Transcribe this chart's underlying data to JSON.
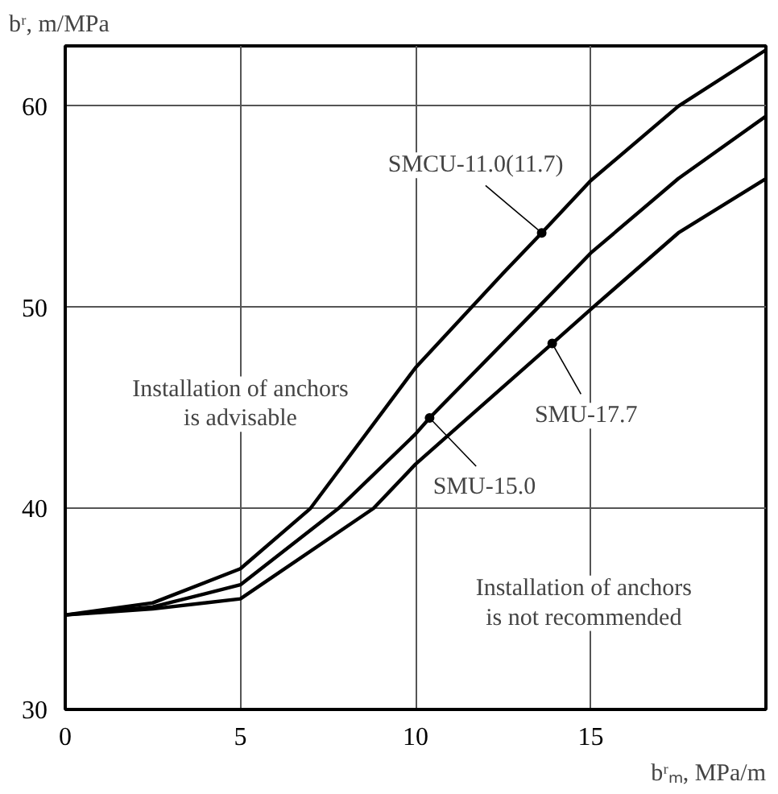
{
  "chart_data": {
    "type": "line",
    "xlabel": "bʳₘ, MPa/m",
    "ylabel": "bʳ, m/MPa",
    "xlim": [
      0,
      20
    ],
    "ylim": [
      30,
      63
    ],
    "xticks": [
      0,
      5,
      10,
      15
    ],
    "yticks": [
      30,
      40,
      50,
      60
    ],
    "grid": true,
    "marker": "none",
    "line_style": "solid",
    "series": [
      {
        "color": "#000000",
        "x": [
          0,
          2.5,
          5,
          7,
          10,
          12.5,
          13.6,
          15,
          17.5,
          20
        ],
        "values": [
          34.7,
          35.3,
          37.0,
          40.0,
          47.0,
          51.7,
          53.7,
          56.3,
          60.0,
          62.8
        ]
      },
      {
        "color": "#000000",
        "x": [
          0,
          2.5,
          5,
          7.8,
          10,
          10.4,
          13.5,
          15,
          17.5,
          20
        ],
        "values": [
          34.7,
          35.1,
          36.2,
          40.0,
          43.7,
          44.5,
          50.0,
          52.7,
          56.4,
          59.5
        ]
      },
      {
        "color": "#000000",
        "x": [
          0,
          2.5,
          5,
          8.8,
          10,
          13.9,
          15,
          17.5,
          20
        ],
        "values": [
          34.7,
          35.0,
          35.5,
          40.0,
          42.2,
          48.2,
          49.9,
          53.7,
          56.4
        ]
      }
    ],
    "annotations": [
      {
        "text": "SMCU-11.0(11.7)",
        "x": 13.6,
        "y": 53.7
      },
      {
        "text": "SMU-17.7",
        "x": 13.9,
        "y": 48.2
      },
      {
        "text": "SMU-15.0",
        "x": 10.4,
        "y": 44.5
      },
      "Installation of anchors\nis advisable",
      "Installation of anchors\nis not recommended"
    ]
  }
}
